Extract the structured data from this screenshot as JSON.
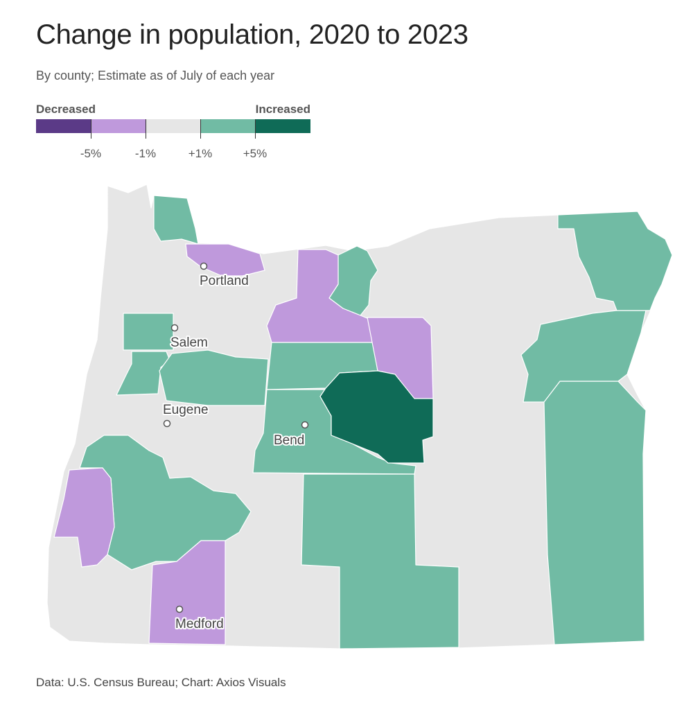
{
  "title": "Change in population, 2020 to 2023",
  "subtitle": "By county; Estimate as of July of each year",
  "legend": {
    "decreased_label": "Decreased",
    "increased_label": "Increased",
    "bins": [
      {
        "name": "below -5%",
        "color": "#5b3a87"
      },
      {
        "name": "-5% to -1%",
        "color": "#bf99dc"
      },
      {
        "name": "-1% to +1%",
        "color": "#e6e6e6"
      },
      {
        "name": "+1% to +5%",
        "color": "#71bba4"
      },
      {
        "name": "above +5%",
        "color": "#0f6b57"
      }
    ],
    "ticks": [
      "-5%",
      "-1%",
      "+1%",
      "+5%"
    ]
  },
  "map": {
    "state_color": "#e6e6e6",
    "border_color": "#ffffff",
    "counties_shown_by_bin": {
      "-5% to -1%": 5,
      "+1% to +5%": 11,
      "above +5%": 1
    },
    "cities": [
      {
        "name": "Portland"
      },
      {
        "name": "Salem"
      },
      {
        "name": "Eugene"
      },
      {
        "name": "Bend"
      },
      {
        "name": "Medford"
      }
    ]
  },
  "footer": "Data: U.S. Census Bureau; Chart: Axios Visuals"
}
